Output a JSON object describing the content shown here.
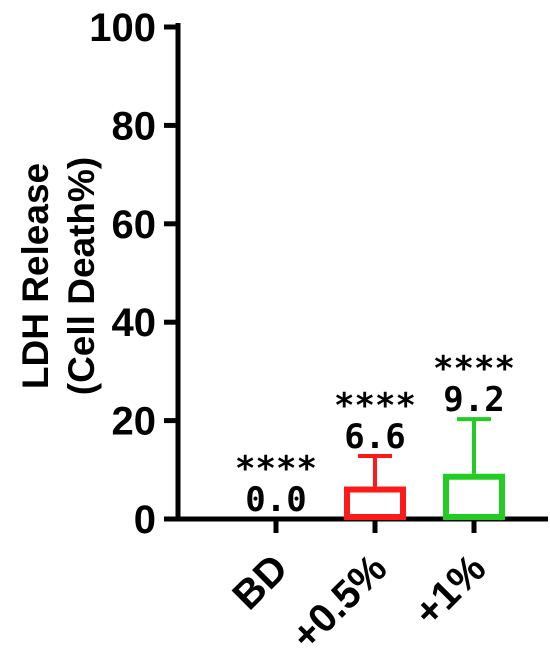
{
  "chart_data": {
    "type": "bar",
    "categories": [
      "BD",
      "+0.5%",
      "+1%"
    ],
    "values": [
      0.0,
      6.6,
      9.2
    ],
    "error_upper": [
      0.0,
      12.8,
      20.3
    ],
    "value_labels": [
      "0.0",
      "6.6",
      "9.2"
    ],
    "significance": [
      "****",
      "****",
      "****"
    ],
    "ylabel_lines": [
      "LDH Release",
      "(Cell Death%)"
    ],
    "ylim": [
      0,
      100
    ],
    "yticks": [
      0,
      20,
      40,
      60,
      80,
      100
    ],
    "colors": [
      "#000000",
      "#ff1a1a",
      "#22cc22"
    ],
    "grid": false
  }
}
